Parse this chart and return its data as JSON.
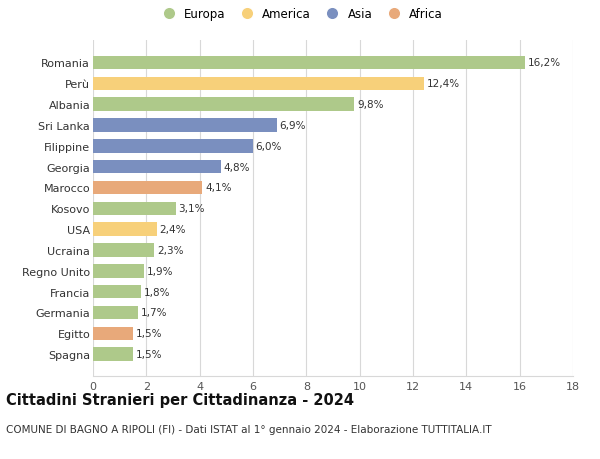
{
  "categories": [
    "Romania",
    "Perù",
    "Albania",
    "Sri Lanka",
    "Filippine",
    "Georgia",
    "Marocco",
    "Kosovo",
    "USA",
    "Ucraina",
    "Regno Unito",
    "Francia",
    "Germania",
    "Egitto",
    "Spagna"
  ],
  "values": [
    16.2,
    12.4,
    9.8,
    6.9,
    6.0,
    4.8,
    4.1,
    3.1,
    2.4,
    2.3,
    1.9,
    1.8,
    1.7,
    1.5,
    1.5
  ],
  "labels": [
    "16,2%",
    "12,4%",
    "9,8%",
    "6,9%",
    "6,0%",
    "4,8%",
    "4,1%",
    "3,1%",
    "2,4%",
    "2,3%",
    "1,9%",
    "1,8%",
    "1,7%",
    "1,5%",
    "1,5%"
  ],
  "continents": [
    "Europa",
    "America",
    "Europa",
    "Asia",
    "Asia",
    "Asia",
    "Africa",
    "Europa",
    "America",
    "Europa",
    "Europa",
    "Europa",
    "Europa",
    "Africa",
    "Europa"
  ],
  "colors": {
    "Europa": "#aec98a",
    "America": "#f7d07a",
    "Asia": "#7a8fbf",
    "Africa": "#e8a97a"
  },
  "legend_order": [
    "Europa",
    "America",
    "Asia",
    "Africa"
  ],
  "title": "Cittadini Stranieri per Cittadinanza - 2024",
  "subtitle": "COMUNE DI BAGNO A RIPOLI (FI) - Dati ISTAT al 1° gennaio 2024 - Elaborazione TUTTITALIA.IT",
  "xlim": [
    0,
    18
  ],
  "xticks": [
    0,
    2,
    4,
    6,
    8,
    10,
    12,
    14,
    16,
    18
  ],
  "background_color": "#ffffff",
  "grid_color": "#d8d8d8",
  "title_fontsize": 10.5,
  "subtitle_fontsize": 7.5,
  "bar_label_fontsize": 7.5,
  "ytick_fontsize": 8,
  "xtick_fontsize": 8,
  "legend_fontsize": 8.5
}
